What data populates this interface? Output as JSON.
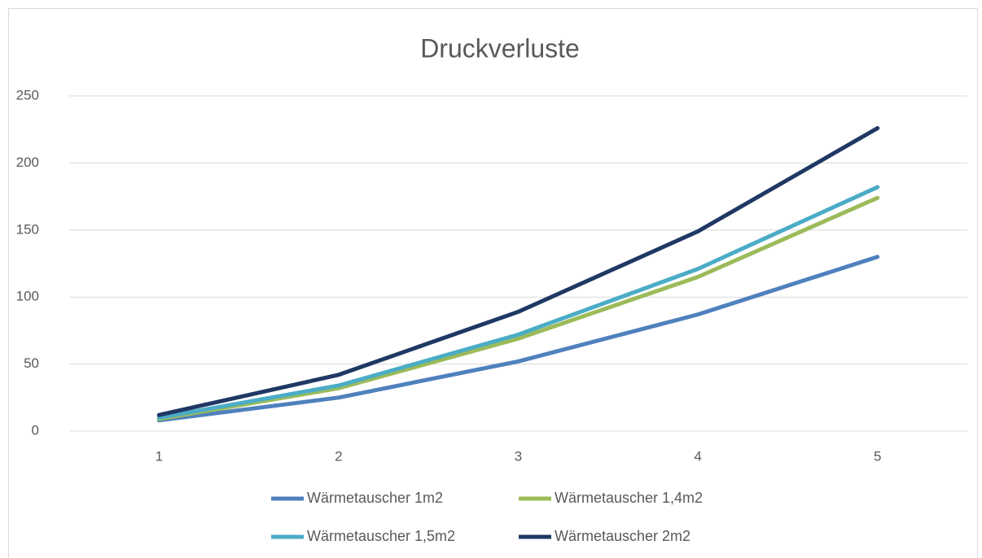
{
  "chart_data": {
    "type": "line",
    "title": "Druckverluste",
    "categories": [
      "1",
      "2",
      "3",
      "4",
      "5"
    ],
    "series": [
      {
        "name": "Wärmetauscher 1m2",
        "color": "#4f81bd",
        "values": [
          8,
          25,
          52,
          87,
          130
        ]
      },
      {
        "name": "Wärmetauscher 1,4m2",
        "color": "#9bbb59",
        "values": [
          9,
          32,
          69,
          115,
          174
        ]
      },
      {
        "name": "Wärmetauscher 1,5m2",
        "color": "#4bacc6",
        "values": [
          10,
          34,
          72,
          121,
          182
        ]
      },
      {
        "name": "Wärmetauscher 2m2",
        "color": "#1f3864",
        "values": [
          12,
          42,
          89,
          149,
          226
        ]
      }
    ],
    "ylim": [
      0,
      250
    ],
    "yticks": [
      0,
      50,
      100,
      150,
      200,
      250
    ],
    "grid": true,
    "legend": "bottom"
  }
}
